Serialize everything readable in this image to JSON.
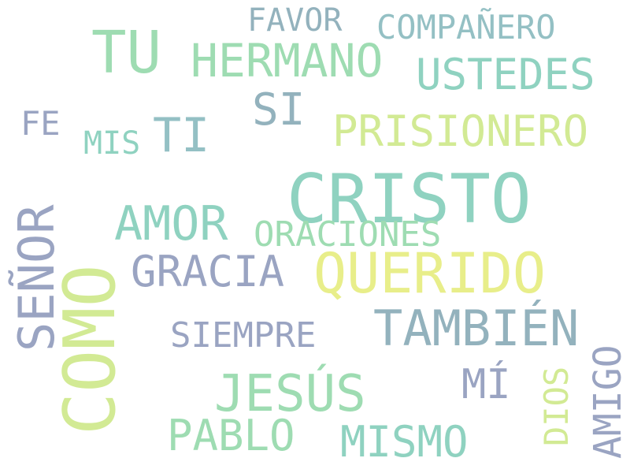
{
  "words": {
    "favor": "FAVOR",
    "companero": "COMPAÑERO",
    "tu": "TU",
    "hermano": "HERMANO",
    "ustedes": "USTEDES",
    "si": "SI",
    "fe": "FE",
    "ti": "TI",
    "prisionero": "PRISIONERO",
    "mis": "MIS",
    "cristo": "CRISTO",
    "amor": "AMOR",
    "oraciones": "ORACIONES",
    "gracia": "GRACIA",
    "querido": "QUERIDO",
    "tambien": "TAMBIÉN",
    "siempre": "SIEMPRE",
    "mi": "MÍ",
    "jesus": "JESÚS",
    "pablo": "PABLO",
    "mismo": "MISMO",
    "senor": "SEÑOR",
    "como": "COMO",
    "dios": "DIOS",
    "amigo": "AMIGO"
  },
  "colors": {
    "slate": "#9aa4c2",
    "steel": "#93b2bd",
    "teal": "#8fd2c0",
    "mint": "#9edcb2",
    "lime": "#d2ea94",
    "yellow": "#e8ee8a",
    "light_blue": "#94c0c4",
    "background": "#ffffff"
  }
}
